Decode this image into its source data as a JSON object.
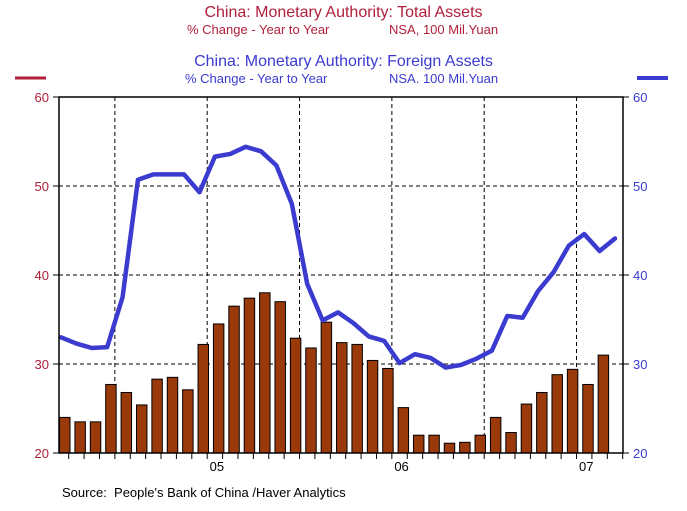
{
  "header": {
    "title_total": "China: Monetary Authority: Total Assets",
    "sub_total_left": "% Change - Year to Year",
    "sub_total_right": "NSA, 100 Mil.Yuan",
    "title_foreign": "China: Monetary Authority: Foreign Assets",
    "sub_foreign_left": "% Change - Year to Year",
    "sub_foreign_right": "NSA. 100 Mil.Yuan"
  },
  "footer": {
    "source": "Source:  People's Bank of China /Haver Analytics"
  },
  "colors": {
    "bar_fill": "#9a3a0a",
    "bar_stroke": "#000000",
    "line": "#3b3bd0",
    "left_axis": "#b0203a",
    "right_axis": "#3b3bd0"
  },
  "chart_data": {
    "type": "bar",
    "ylim": [
      20,
      60
    ],
    "y_ticks": [
      "20",
      "30",
      "40",
      "50",
      "60"
    ],
    "x_labels": [
      "05",
      "06",
      "07"
    ],
    "grid": true,
    "series": [
      {
        "name": "China: Monetary Authority: Total Assets",
        "type": "bar",
        "axis": "left",
        "values": [
          24.0,
          23.5,
          23.5,
          27.7,
          26.8,
          25.4,
          28.3,
          28.5,
          27.1,
          32.2,
          34.5,
          36.5,
          37.4,
          38.0,
          37.0,
          32.9,
          31.8,
          34.7,
          32.4,
          32.2,
          30.4,
          29.5,
          25.1,
          22.0,
          22.0,
          21.1,
          21.2,
          22.0,
          24.0,
          22.3,
          25.5,
          26.8,
          28.8,
          29.4,
          27.7,
          31.0
        ]
      },
      {
        "name": "China: Monetary Authority: Foreign Assets",
        "type": "line",
        "axis": "right",
        "values": [
          33.0,
          32.3,
          31.8,
          31.9,
          37.5,
          50.7,
          51.3,
          51.3,
          51.3,
          49.3,
          53.3,
          53.6,
          54.4,
          53.9,
          52.3,
          48.0,
          39.0,
          34.9,
          35.8,
          34.6,
          33.1,
          32.6,
          30.1,
          31.1,
          30.7,
          29.6,
          29.9,
          30.6,
          31.5,
          35.4,
          35.2,
          38.2,
          40.3,
          43.3,
          44.6,
          42.7,
          44.1
        ]
      }
    ]
  }
}
